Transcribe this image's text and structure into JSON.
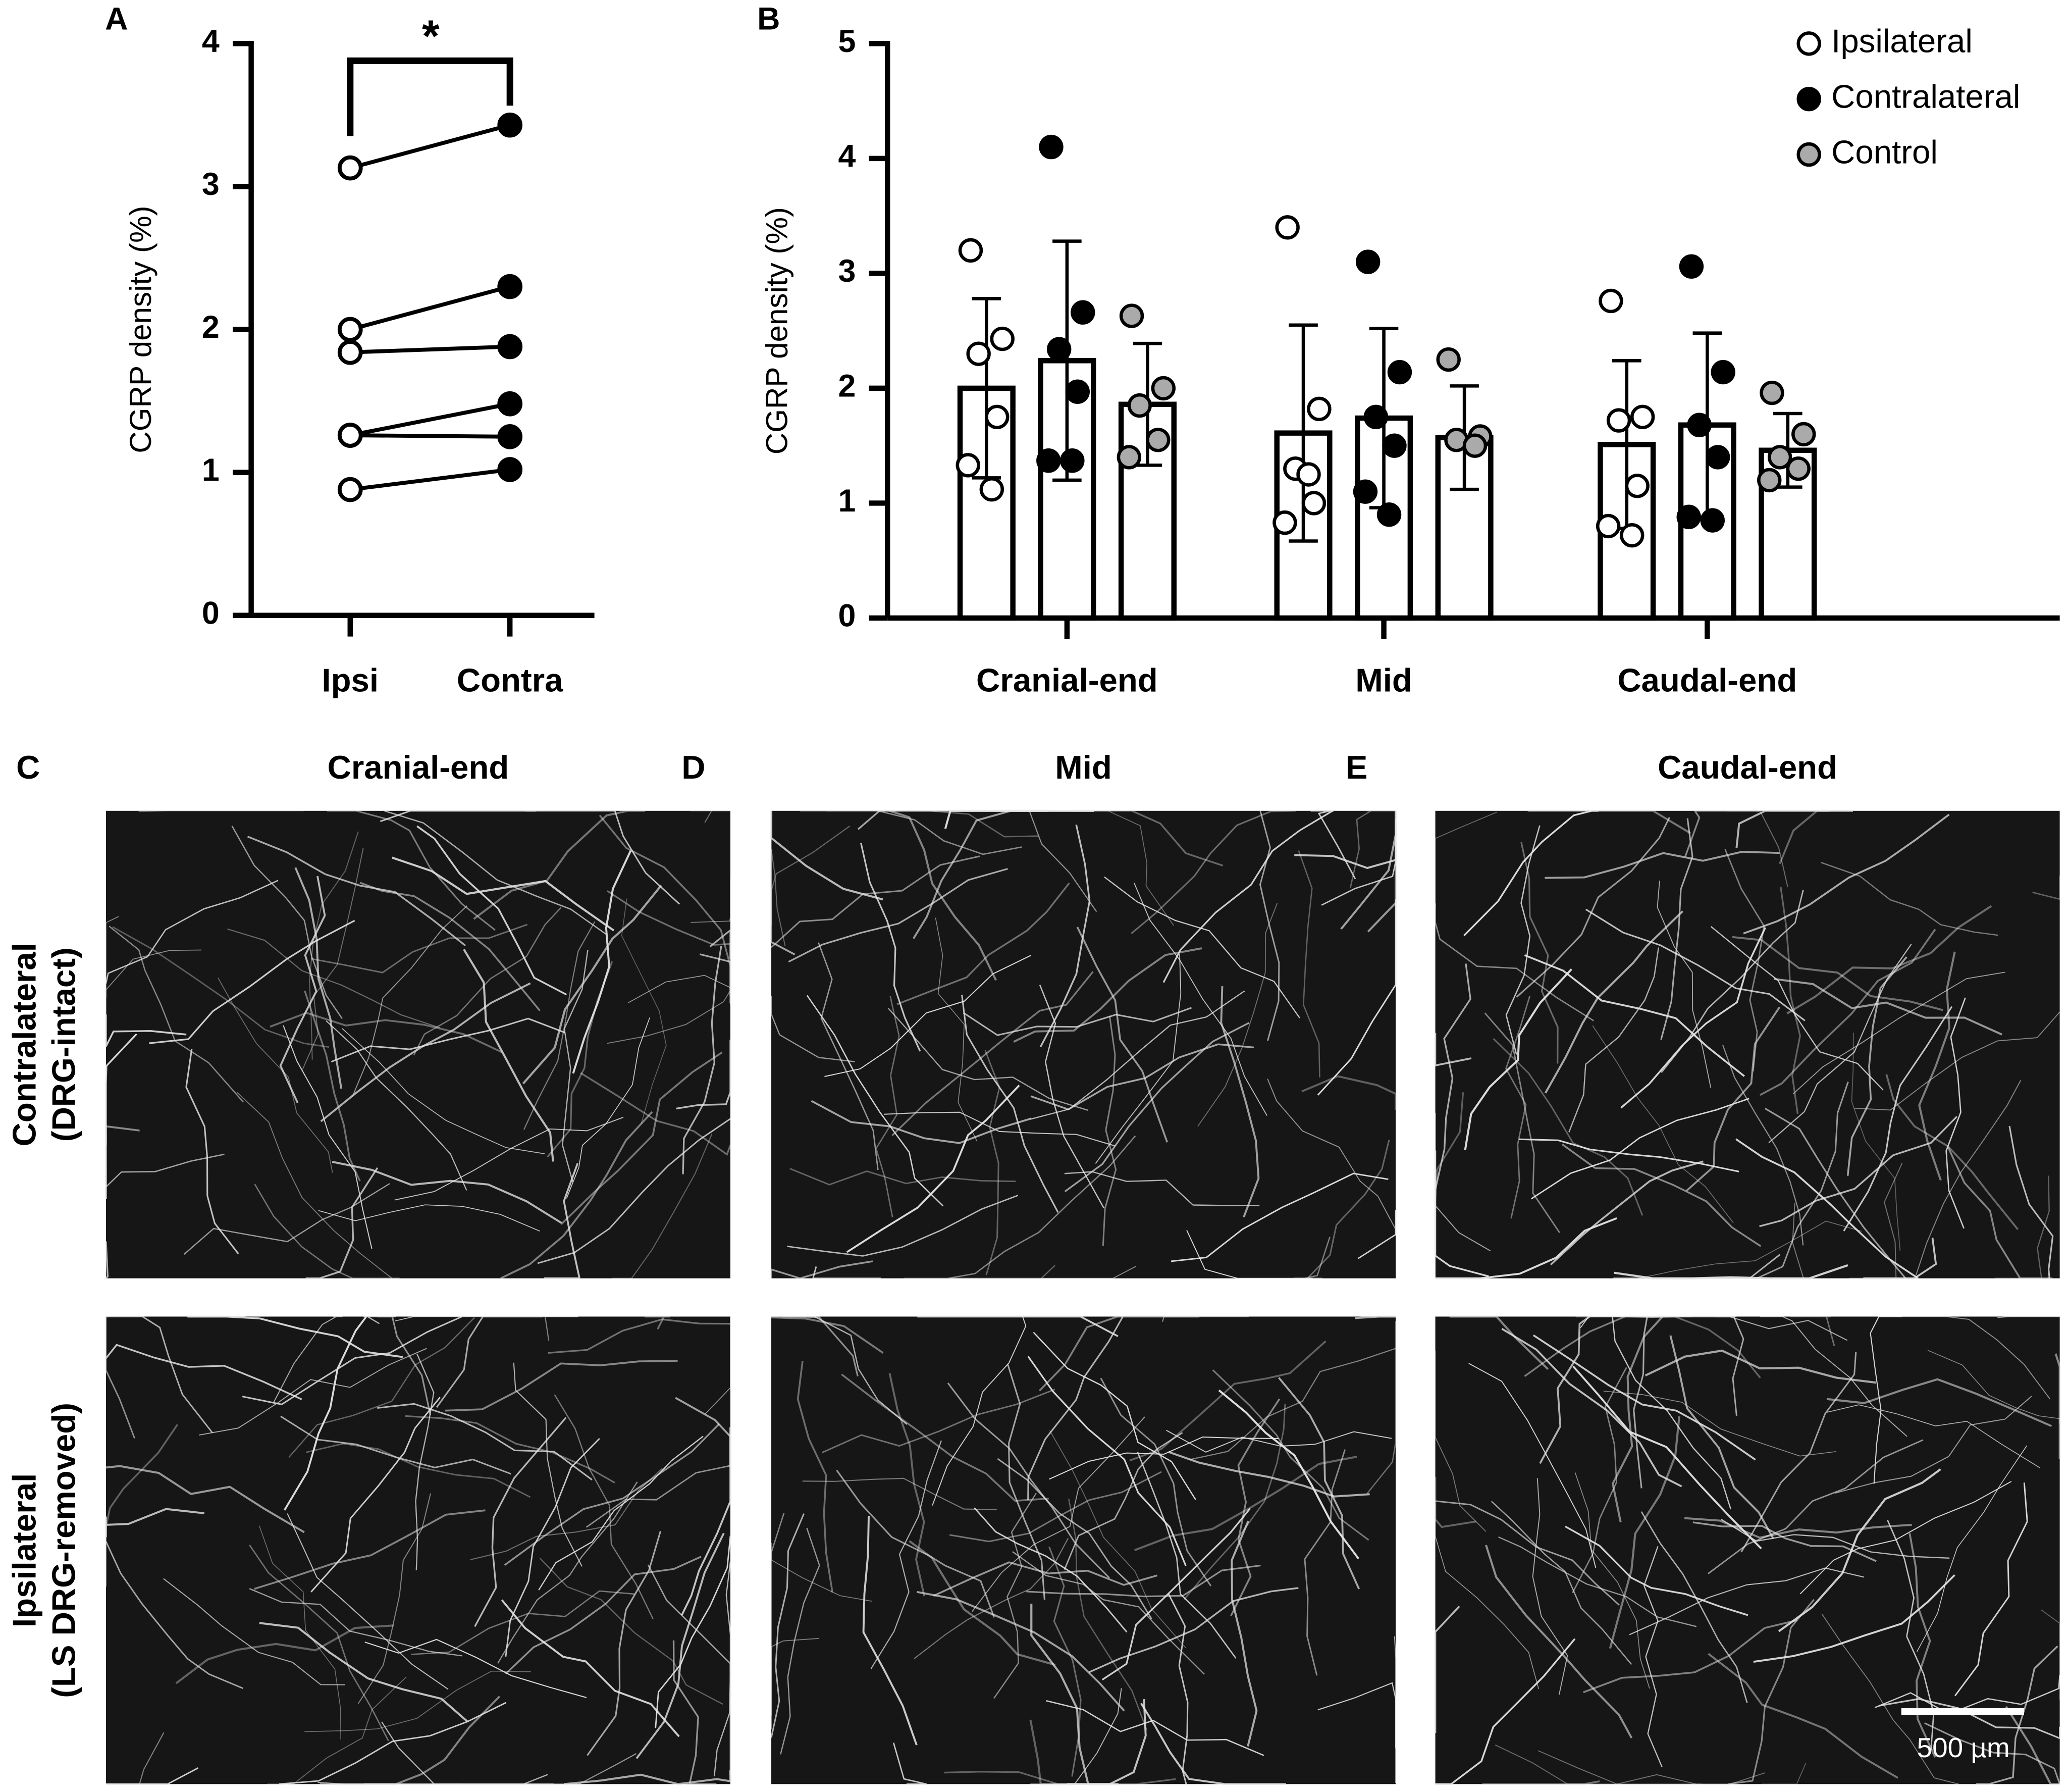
{
  "chart_data": [
    {
      "type": "paired",
      "label": "A",
      "ylabel": "CGRP density (%)",
      "categories": [
        "Ipsi",
        "Contra"
      ],
      "ylim": [
        0,
        4
      ],
      "yticks": [
        0,
        1,
        2,
        3,
        4
      ],
      "colors": [
        "#ffffff",
        "#000000"
      ],
      "values": [
        [
          3.13,
          2.0,
          1.84,
          1.26,
          1.26,
          0.88
        ],
        [
          3.43,
          2.3,
          1.88,
          1.48,
          1.25,
          1.02
        ]
      ],
      "annotation": "*"
    },
    {
      "type": "bar",
      "label": "B",
      "ylabel": "CGRP density (%)",
      "categories": [
        "Cranial-end",
        "Mid",
        "Caudal-end"
      ],
      "ylim": [
        0,
        5
      ],
      "yticks": [
        0,
        1,
        2,
        3,
        4,
        5
      ],
      "legend": "upper right",
      "series": [
        {
          "name": "Ipsilateral",
          "color": "#ffffff",
          "values": [
            2.0,
            1.61,
            1.51
          ],
          "errors": [
            0.78,
            0.94,
            0.73
          ],
          "points": [
            [
              3.2,
              2.43,
              2.3,
              1.75,
              1.33,
              1.12
            ],
            [
              3.4,
              1.82,
              1.3,
              1.0,
              0.83,
              1.25
            ],
            [
              2.76,
              1.75,
              1.72,
              1.15,
              0.8,
              0.72
            ]
          ]
        },
        {
          "name": "Contralateral",
          "color": "#000000",
          "values": [
            2.24,
            1.74,
            1.68
          ],
          "errors": [
            1.04,
            0.78,
            0.8
          ],
          "points": [
            [
              4.1,
              2.66,
              2.34,
              1.97,
              1.37,
              1.37
            ],
            [
              3.1,
              2.14,
              1.75,
              1.5,
              1.1,
              0.9
            ],
            [
              3.06,
              2.14,
              1.68,
              1.4,
              0.88,
              0.85
            ]
          ]
        },
        {
          "name": "Control",
          "color": "#aaaaaa",
          "values": [
            1.86,
            1.57,
            1.46
          ],
          "errors": [
            0.53,
            0.45,
            0.32
          ],
          "points": [
            [
              2.63,
              2.0,
              1.85,
              1.55,
              1.4
            ],
            [
              2.25,
              1.58,
              1.55,
              1.5
            ],
            [
              1.96,
              1.6,
              1.4,
              1.3,
              1.2
            ]
          ]
        }
      ]
    }
  ],
  "figure": {
    "panel_labels": [
      "C",
      "D",
      "E"
    ],
    "column_titles": [
      "Cranial-end",
      "Mid",
      "Caudal-end"
    ],
    "row_labels": [
      [
        "Contralateral",
        "(DRG-intact)"
      ],
      [
        "Ipsilateral",
        "(LS DRG-removed)"
      ]
    ],
    "scale_bar": "500 µm"
  }
}
